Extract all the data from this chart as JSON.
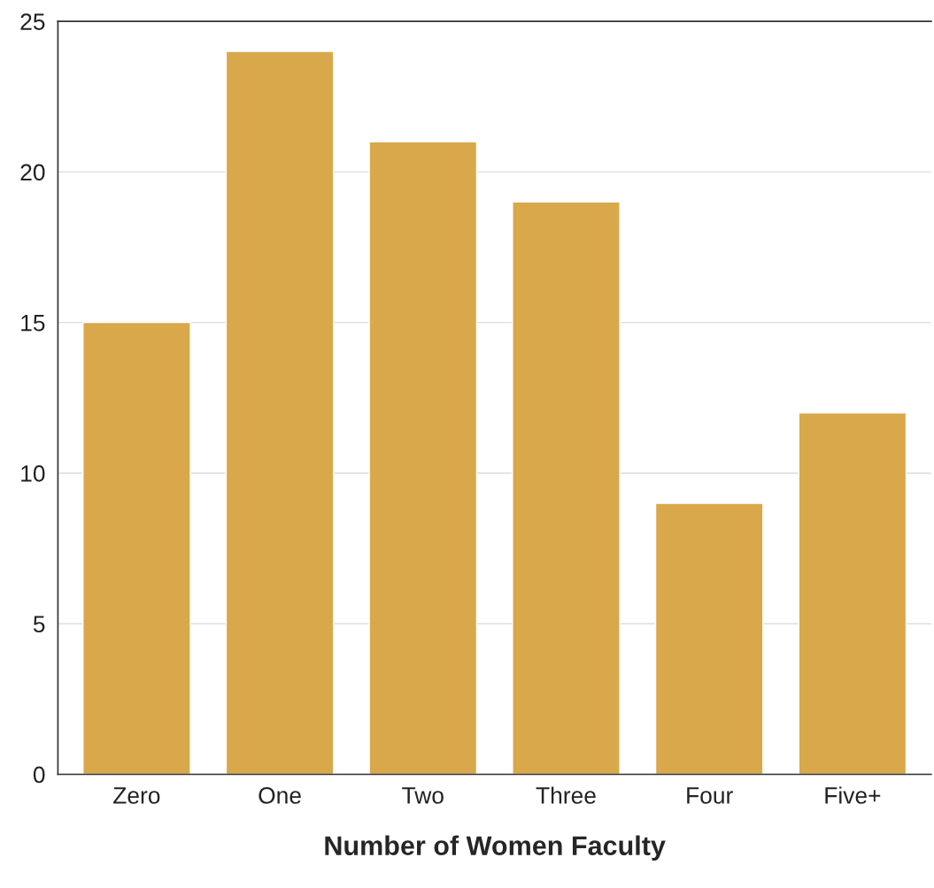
{
  "chart_data": {
    "type": "bar",
    "xlabel": "Number of Women Faculty",
    "categories": [
      "Zero",
      "One",
      "Two",
      "Three",
      "Four",
      "Five+"
    ],
    "values": [
      15,
      24,
      21,
      19,
      9,
      12
    ],
    "color": "#d9a84a",
    "ylim": [
      0,
      25
    ],
    "yticks": [
      0,
      5,
      10,
      15,
      20,
      25
    ],
    "grid": "y"
  }
}
